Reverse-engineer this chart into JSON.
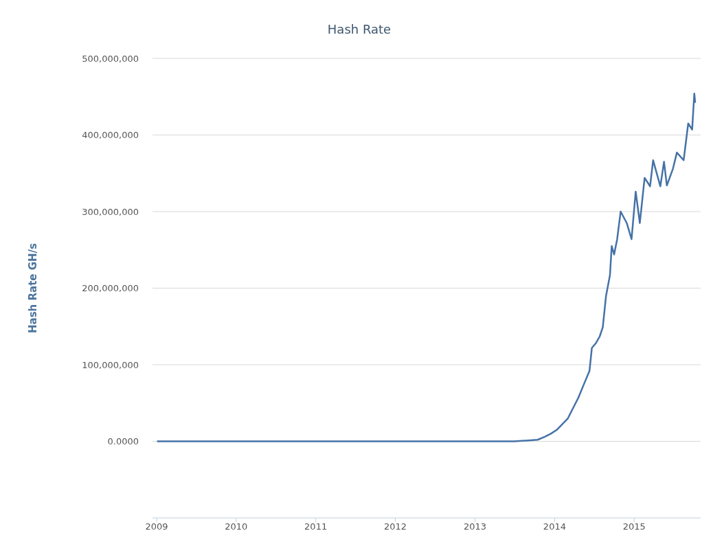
{
  "chart_data": {
    "type": "line",
    "title": "Hash Rate",
    "ylabel": "Hash Rate GH/s",
    "x": [
      "2009-01-03",
      "2010-01-01",
      "2011-01-01",
      "2012-01-01",
      "2013-01-01",
      "2013-07-01",
      "2013-10-15",
      "2013-11-17",
      "2013-12-15",
      "2014-01-11",
      "2014-03-03",
      "2014-04-20",
      "2014-05-19",
      "2014-06-10",
      "2014-06-21",
      "2014-07-09",
      "2014-07-27",
      "2014-08-10",
      "2014-08-25",
      "2014-09-12",
      "2014-09-20",
      "2014-10-01",
      "2014-10-15",
      "2014-10-31",
      "2014-11-28",
      "2014-12-20",
      "2015-01-08",
      "2015-01-27",
      "2015-02-18",
      "2015-03-15",
      "2015-03-29",
      "2015-05-01",
      "2015-05-18",
      "2015-05-31",
      "2015-06-28",
      "2015-07-16",
      "2015-08-16",
      "2015-09-06",
      "2015-09-24",
      "2015-10-04",
      "2015-10-08"
    ],
    "series": [
      {
        "color": "#4572a7",
        "values": [
          0,
          0,
          0,
          0,
          0,
          0,
          2000000,
          6000000,
          10000000,
          15000000,
          30000000,
          57000000,
          77000000,
          92000000,
          122000000,
          128000000,
          137000000,
          149000000,
          190000000,
          217000000,
          255000000,
          244000000,
          264000000,
          300000000,
          285000000,
          264000000,
          326000000,
          285000000,
          344000000,
          333000000,
          367000000,
          333000000,
          365000000,
          334000000,
          356000000,
          377000000,
          367000000,
          415000000,
          407000000,
          454000000,
          442000000
        ]
      }
    ],
    "xlim": [
      "2008-12-13",
      "2015-11-02"
    ],
    "xticks": [
      "2009",
      "2010",
      "2011",
      "2012",
      "2013",
      "2014",
      "2015"
    ],
    "ylim": [
      -100000000,
      500000000
    ],
    "yticks": [
      {
        "value": 0,
        "label": "0.0000"
      },
      {
        "value": 100000000,
        "label": "100,000,000"
      },
      {
        "value": 200000000,
        "label": "200,000,000"
      },
      {
        "value": 300000000,
        "label": "300,000,000"
      },
      {
        "value": 400000000,
        "label": "400,000,000"
      },
      {
        "value": 500000000,
        "label": "500,000,000"
      }
    ],
    "grid": "y",
    "legend": false,
    "marker": "none",
    "line_style": "solid"
  }
}
